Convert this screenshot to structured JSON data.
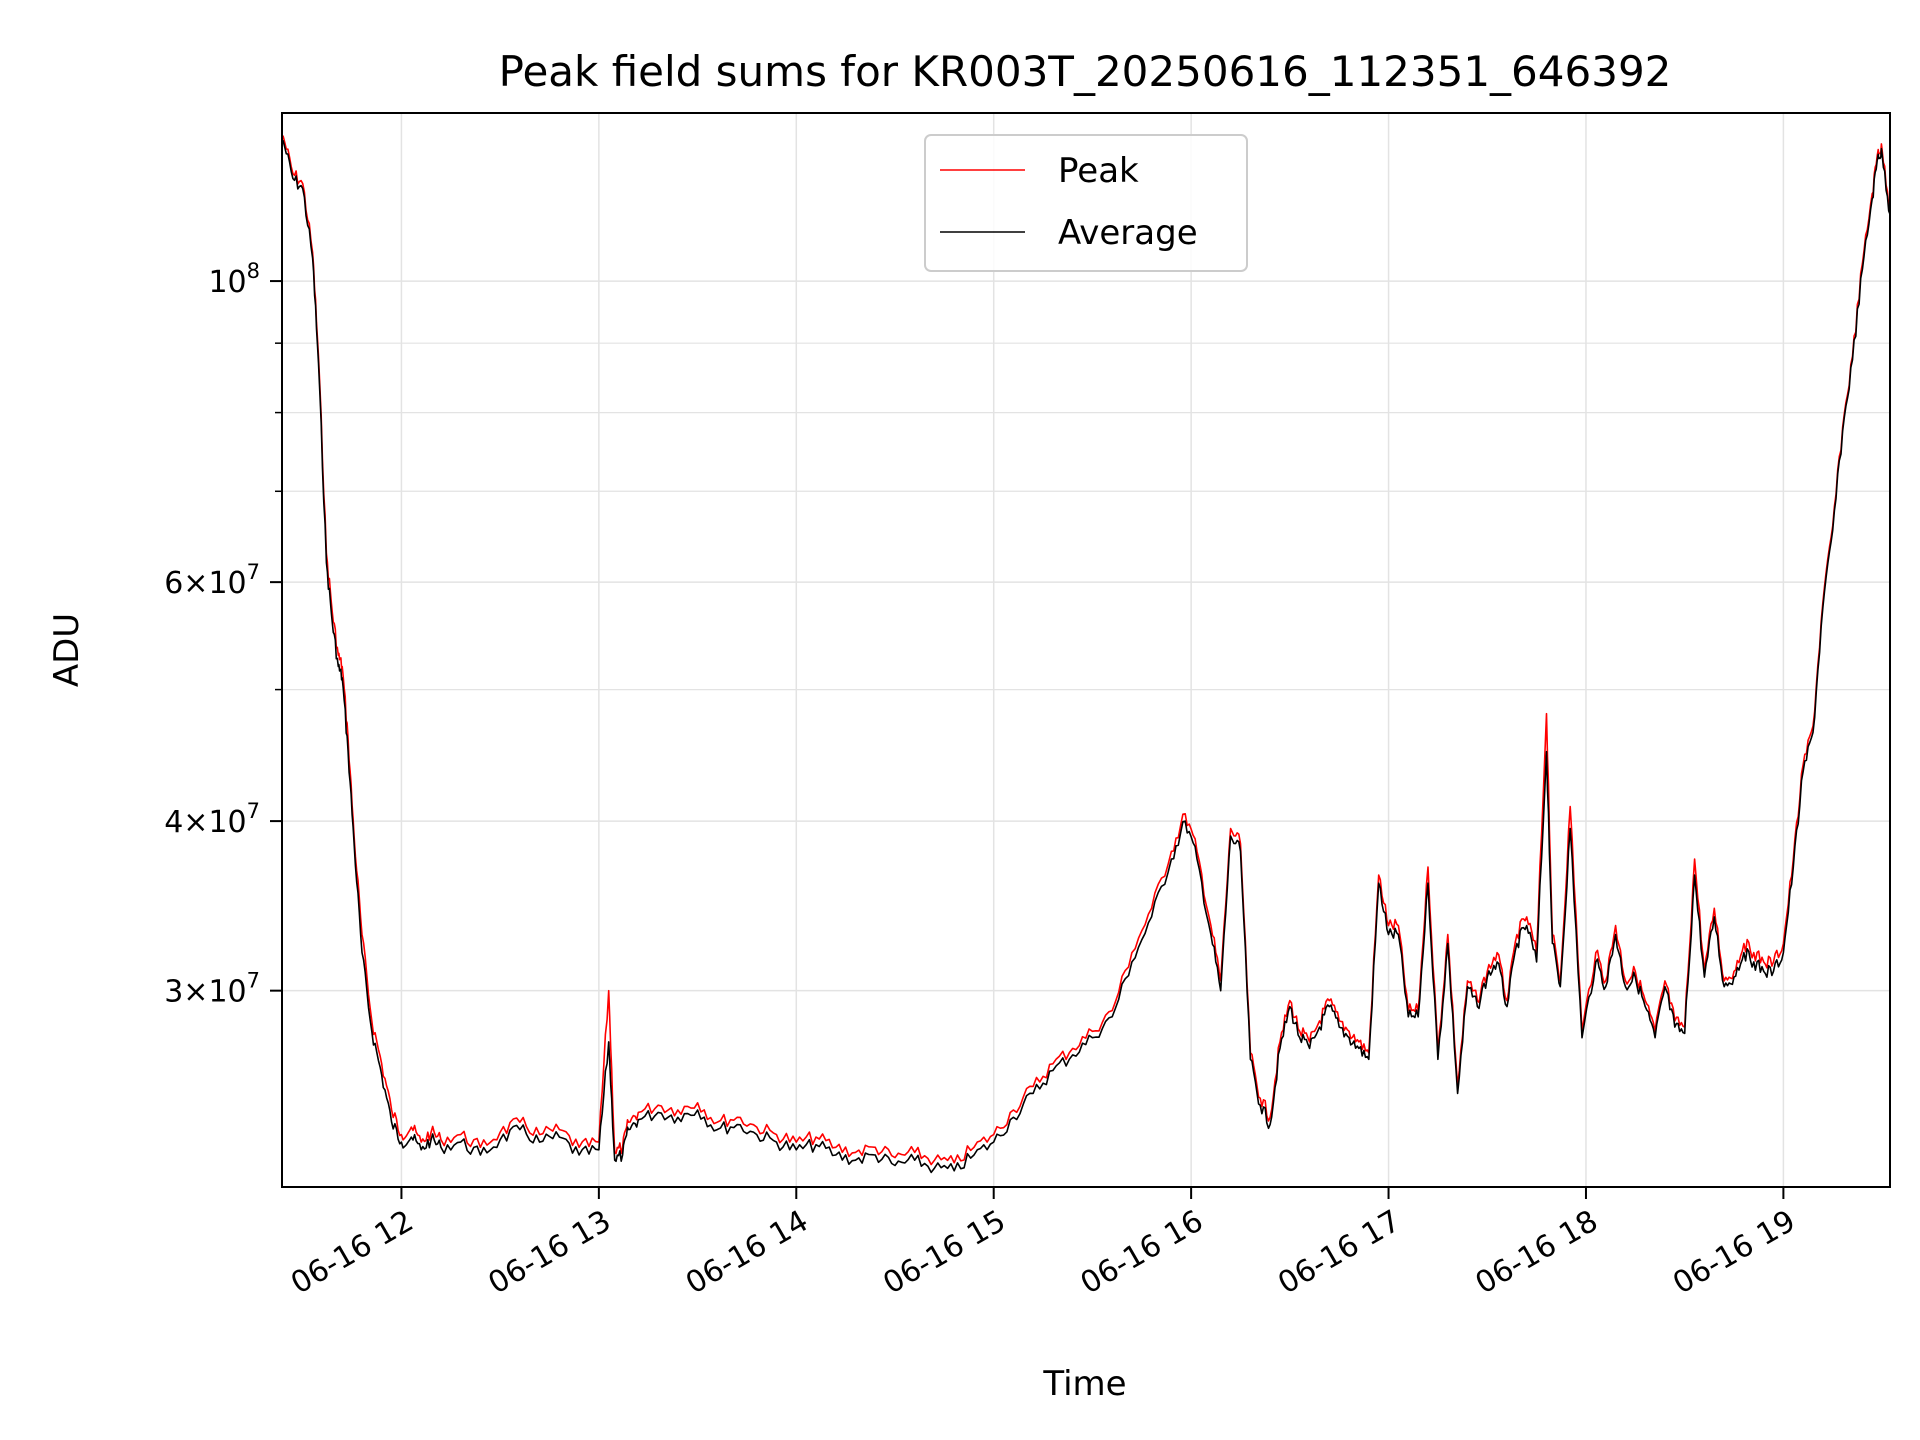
{
  "chart_data": {
    "type": "line",
    "title": "Peak field sums for KR003T_20250616_112351_646392",
    "xlabel": "Time",
    "ylabel": "ADU",
    "y_scale": "log",
    "x_unit": "hour of 2025-06-16",
    "xlim": [
      11.395,
      19.54
    ],
    "ylim": [
      21500000,
      133000000
    ],
    "grid": true,
    "legend": {
      "position": "upper center"
    },
    "x_ticks": [
      {
        "x": 12,
        "label": "06-16 12"
      },
      {
        "x": 13,
        "label": "06-16 13"
      },
      {
        "x": 14,
        "label": "06-16 14"
      },
      {
        "x": 15,
        "label": "06-16 15"
      },
      {
        "x": 16,
        "label": "06-16 16"
      },
      {
        "x": 17,
        "label": "06-16 17"
      },
      {
        "x": 18,
        "label": "06-16 18"
      },
      {
        "x": 19,
        "label": "06-16 19"
      }
    ],
    "y_ticks": [
      {
        "y": 30000000,
        "base": "3",
        "exp": "7"
      },
      {
        "y": 40000000,
        "base": "4",
        "exp": "7"
      },
      {
        "y": 60000000,
        "base": "6",
        "exp": "7"
      },
      {
        "y": 100000000,
        "base": "",
        "exp": "8"
      }
    ],
    "y_minor_ticks": [
      50000000,
      70000000,
      80000000,
      90000000
    ],
    "series": [
      {
        "name": "Peak",
        "color": "#ff0000",
        "x": [
          11.4,
          11.45,
          11.5,
          11.55,
          11.58,
          11.62,
          11.65,
          11.68,
          11.7,
          11.73,
          11.76,
          11.8,
          11.85,
          11.9,
          11.95,
          12.0,
          12.05,
          12.1,
          12.15,
          12.2,
          12.3,
          12.4,
          12.5,
          12.6,
          12.7,
          12.8,
          12.9,
          13.0,
          13.05,
          13.08,
          13.12,
          13.15,
          13.2,
          13.3,
          13.4,
          13.5,
          13.6,
          13.7,
          13.8,
          13.9,
          14.0,
          14.1,
          14.2,
          14.3,
          14.4,
          14.5,
          14.6,
          14.7,
          14.8,
          14.9,
          15.0,
          15.1,
          15.2,
          15.3,
          15.4,
          15.5,
          15.6,
          15.7,
          15.8,
          15.9,
          15.97,
          16.03,
          16.1,
          16.15,
          16.2,
          16.25,
          16.3,
          16.35,
          16.4,
          16.45,
          16.5,
          16.55,
          16.6,
          16.65,
          16.7,
          16.75,
          16.8,
          16.85,
          16.9,
          16.95,
          17.0,
          17.05,
          17.1,
          17.15,
          17.2,
          17.25,
          17.3,
          17.35,
          17.4,
          17.45,
          17.5,
          17.55,
          17.6,
          17.65,
          17.7,
          17.75,
          17.8,
          17.83,
          17.87,
          17.92,
          17.98,
          18.05,
          18.1,
          18.15,
          18.2,
          18.25,
          18.3,
          18.35,
          18.4,
          18.45,
          18.5,
          18.55,
          18.6,
          18.65,
          18.7,
          18.75,
          18.8,
          18.85,
          18.9,
          18.95,
          19.0,
          19.05,
          19.1,
          19.15,
          19.2,
          19.25,
          19.3,
          19.35,
          19.4,
          19.45,
          19.48,
          19.5,
          19.54
        ],
        "y": [
          128000000,
          120000000,
          118000000,
          105000000,
          88000000,
          63000000,
          57000000,
          53000000,
          52000000,
          46000000,
          39000000,
          33000000,
          28500000,
          26500000,
          24500000,
          23500000,
          23800000,
          23200000,
          23600000,
          23300000,
          23500000,
          23000000,
          23600000,
          24000000,
          23500000,
          23700000,
          23000000,
          23200000,
          30000000,
          22800000,
          23000000,
          24000000,
          24400000,
          24700000,
          24500000,
          24800000,
          24000000,
          24200000,
          23800000,
          23500000,
          23200000,
          23400000,
          23000000,
          22800000,
          23000000,
          22600000,
          22800000,
          22500000,
          22400000,
          23000000,
          23500000,
          24500000,
          25500000,
          26500000,
          27200000,
          28000000,
          29000000,
          32000000,
          34500000,
          38000000,
          40500000,
          38000000,
          33500000,
          30500000,
          39500000,
          38500000,
          27000000,
          25000000,
          24200000,
          27500000,
          29500000,
          28000000,
          27500000,
          28500000,
          29500000,
          28500000,
          28000000,
          27500000,
          27000000,
          36500000,
          33500000,
          33500000,
          29000000,
          29000000,
          37000000,
          27000000,
          33000000,
          25500000,
          30500000,
          29500000,
          31000000,
          32000000,
          29500000,
          33000000,
          34000000,
          32000000,
          48000000,
          33000000,
          30500000,
          41000000,
          28000000,
          32000000,
          30500000,
          33500000,
          30500000,
          31000000,
          29500000,
          28000000,
          30500000,
          28500000,
          28200000,
          37500000,
          31000000,
          34500000,
          30500000,
          31000000,
          32500000,
          32000000,
          31500000,
          31500000,
          32500000,
          37500000,
          44000000,
          47000000,
          58000000,
          66000000,
          78000000,
          88000000,
          103000000,
          116000000,
          125000000,
          125000000,
          113000000
        ],
        "legend_label": "Peak"
      },
      {
        "name": "Average",
        "color": "#000000",
        "x": [
          11.4,
          11.45,
          11.5,
          11.55,
          11.58,
          11.62,
          11.65,
          11.68,
          11.7,
          11.73,
          11.76,
          11.8,
          11.85,
          11.9,
          11.95,
          12.0,
          12.05,
          12.1,
          12.15,
          12.2,
          12.3,
          12.4,
          12.5,
          12.6,
          12.7,
          12.8,
          12.9,
          13.0,
          13.05,
          13.08,
          13.12,
          13.15,
          13.2,
          13.3,
          13.4,
          13.5,
          13.6,
          13.7,
          13.8,
          13.9,
          14.0,
          14.1,
          14.2,
          14.3,
          14.4,
          14.5,
          14.6,
          14.7,
          14.8,
          14.9,
          15.0,
          15.1,
          15.2,
          15.3,
          15.4,
          15.5,
          15.6,
          15.7,
          15.8,
          15.9,
          15.97,
          16.03,
          16.1,
          16.15,
          16.2,
          16.25,
          16.3,
          16.35,
          16.4,
          16.45,
          16.5,
          16.55,
          16.6,
          16.65,
          16.7,
          16.75,
          16.8,
          16.85,
          16.9,
          16.95,
          17.0,
          17.05,
          17.1,
          17.15,
          17.2,
          17.25,
          17.3,
          17.35,
          17.4,
          17.45,
          17.5,
          17.55,
          17.6,
          17.65,
          17.7,
          17.75,
          17.8,
          17.83,
          17.87,
          17.92,
          17.98,
          18.05,
          18.1,
          18.15,
          18.2,
          18.25,
          18.3,
          18.35,
          18.4,
          18.45,
          18.5,
          18.55,
          18.6,
          18.65,
          18.7,
          18.75,
          18.8,
          18.85,
          18.9,
          18.95,
          19.0,
          19.05,
          19.1,
          19.15,
          19.2,
          19.25,
          19.3,
          19.35,
          19.4,
          19.45,
          19.48,
          19.5,
          19.54
        ],
        "y": [
          127000000,
          119000000,
          117000000,
          104000000,
          87000000,
          62000000,
          56000000,
          52000000,
          51000000,
          45000000,
          38500000,
          32000000,
          28000000,
          26000000,
          24000000,
          23200000,
          23400000,
          22900000,
          23300000,
          23000000,
          23200000,
          22700000,
          23300000,
          23700000,
          23200000,
          23400000,
          22700000,
          22900000,
          27500000,
          22500000,
          22700000,
          23700000,
          24100000,
          24400000,
          24200000,
          24500000,
          23700000,
          23900000,
          23500000,
          23200000,
          22900000,
          23100000,
          22700000,
          22500000,
          22700000,
          22300000,
          22500000,
          22200000,
          22100000,
          22700000,
          23200000,
          24200000,
          25200000,
          26200000,
          26900000,
          27700000,
          28700000,
          31500000,
          34000000,
          37500000,
          40000000,
          37500000,
          33000000,
          30000000,
          39000000,
          38000000,
          26700000,
          24700000,
          23900000,
          27200000,
          29200000,
          27700000,
          27200000,
          28200000,
          29200000,
          28200000,
          27700000,
          27200000,
          26700000,
          36000000,
          33000000,
          33000000,
          28700000,
          28700000,
          36000000,
          26700000,
          32500000,
          25200000,
          30200000,
          29200000,
          30700000,
          31500000,
          29200000,
          32500000,
          33500000,
          31500000,
          45000000,
          32500000,
          30200000,
          39500000,
          27700000,
          31500000,
          30200000,
          33000000,
          30200000,
          30700000,
          29200000,
          27700000,
          30200000,
          28200000,
          27900000,
          36500000,
          30700000,
          34000000,
          30200000,
          30700000,
          32000000,
          31500000,
          31000000,
          31000000,
          32000000,
          37000000,
          43500000,
          46500000,
          57500000,
          65500000,
          77500000,
          87500000,
          102000000,
          115000000,
          124000000,
          124000000,
          112000000
        ],
        "legend_label": "Average"
      }
    ]
  }
}
